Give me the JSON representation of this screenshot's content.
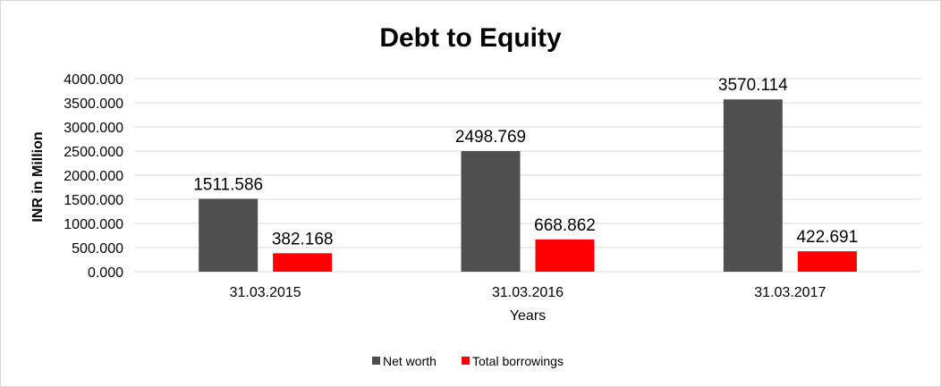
{
  "chart_data": {
    "type": "bar",
    "title": "Debt to Equity",
    "xlabel": "Years",
    "ylabel": "INR in Million",
    "categories": [
      "31.03.2015",
      "31.03.2016",
      "31.03.2017"
    ],
    "series": [
      {
        "name": "Net worth",
        "values": [
          1511.586,
          2498.769,
          3570.114
        ],
        "color": "#4f4f4f"
      },
      {
        "name": "Total borrowings",
        "values": [
          382.168,
          668.862,
          422.691
        ],
        "color": "#ff0000"
      }
    ],
    "ylim": [
      0,
      4000
    ],
    "yticks": [
      "0.000",
      "500.000",
      "1000.000",
      "1500.000",
      "2000.000",
      "2500.000",
      "3000.000",
      "3500.000",
      "4000.000"
    ],
    "grid": true,
    "legend_position": "bottom",
    "data_labels": true
  }
}
